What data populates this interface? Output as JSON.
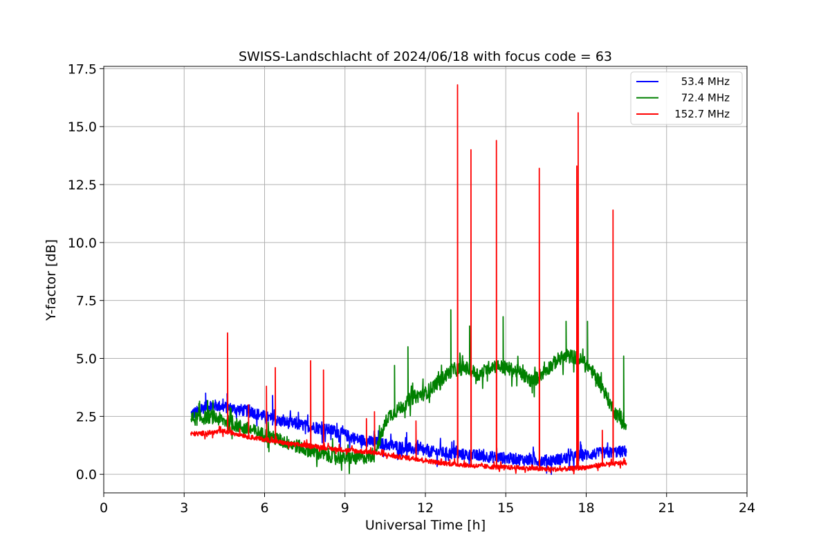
{
  "chart_data": {
    "type": "line",
    "title": "SWISS-Landschlacht of 2024/06/18 with focus code = 63",
    "xlabel": "Universal Time [h]",
    "ylabel": "Y-factor [dB]",
    "xlim": [
      0,
      24
    ],
    "ylim": [
      -0.8,
      17.6
    ],
    "xticks": [
      0,
      3,
      6,
      9,
      12,
      15,
      18,
      21,
      24
    ],
    "yticks": [
      0.0,
      2.5,
      5.0,
      7.5,
      10.0,
      12.5,
      15.0,
      17.5
    ],
    "xtick_labels": [
      "0",
      "3",
      "6",
      "9",
      "12",
      "15",
      "18",
      "21",
      "24"
    ],
    "ytick_labels": [
      "0.0",
      "2.5",
      "5.0",
      "7.5",
      "10.0",
      "12.5",
      "15.0",
      "17.5"
    ],
    "grid": true,
    "legend_position": "top-right",
    "series": [
      {
        "name": "53.4 MHz",
        "color": "#0000ff",
        "noise": 0.25,
        "x": [
          3.25,
          3.5,
          3.75,
          4.0,
          4.5,
          5.0,
          5.5,
          6.0,
          6.5,
          7.0,
          7.5,
          8.0,
          8.5,
          9.0,
          9.5,
          10.0,
          10.5,
          11.0,
          11.5,
          12.0,
          12.5,
          13.0,
          13.5,
          14.0,
          14.5,
          15.0,
          15.5,
          16.0,
          16.5,
          17.0,
          17.5,
          18.0,
          18.5,
          19.0,
          19.5
        ],
        "y": [
          2.6,
          2.7,
          2.9,
          3.0,
          2.9,
          2.8,
          2.7,
          2.5,
          2.3,
          2.2,
          2.1,
          2.0,
          1.9,
          1.7,
          1.5,
          1.4,
          1.3,
          1.2,
          1.1,
          1.0,
          0.95,
          0.9,
          0.85,
          0.8,
          0.75,
          0.7,
          0.65,
          0.6,
          0.6,
          0.65,
          0.75,
          0.85,
          0.9,
          0.95,
          1.0
        ],
        "spikes": [
          [
            3.8,
            3.5
          ],
          [
            4.6,
            3.2
          ],
          [
            6.3,
            3.4
          ],
          [
            8.7,
            2.2
          ],
          [
            11.3,
            1.8
          ]
        ]
      },
      {
        "name": "72.4 MHz",
        "color": "#008000",
        "noise": 0.3,
        "x": [
          3.25,
          3.5,
          4.0,
          4.5,
          5.0,
          5.5,
          6.0,
          6.5,
          7.0,
          7.5,
          8.0,
          8.5,
          9.0,
          9.5,
          10.0,
          10.3,
          10.6,
          11.0,
          11.5,
          12.0,
          12.5,
          13.0,
          13.5,
          14.0,
          14.5,
          15.0,
          15.5,
          16.0,
          16.5,
          17.0,
          17.5,
          18.0,
          18.5,
          19.0,
          19.5
        ],
        "y": [
          2.4,
          2.4,
          2.5,
          2.3,
          2.1,
          1.9,
          1.7,
          1.5,
          1.3,
          1.1,
          0.9,
          0.8,
          0.7,
          0.7,
          0.8,
          1.5,
          2.5,
          2.8,
          3.3,
          3.5,
          4.0,
          4.5,
          4.6,
          4.3,
          4.7,
          4.6,
          4.4,
          4.0,
          4.5,
          5.0,
          5.1,
          4.8,
          4.0,
          2.8,
          2.0
        ],
        "spikes": [
          [
            10.85,
            4.7
          ],
          [
            11.35,
            5.5
          ],
          [
            12.95,
            7.1
          ],
          [
            13.65,
            6.4
          ],
          [
            14.9,
            6.8
          ],
          [
            17.25,
            6.6
          ],
          [
            18.05,
            6.6
          ],
          [
            19.4,
            5.1
          ]
        ]
      },
      {
        "name": "152.7 MHz",
        "color": "#ff0000",
        "noise": 0.1,
        "x": [
          3.25,
          3.5,
          4.0,
          4.5,
          5.0,
          5.5,
          6.0,
          6.5,
          7.0,
          7.5,
          8.0,
          8.5,
          9.0,
          9.5,
          10.0,
          10.5,
          11.0,
          11.5,
          12.0,
          12.5,
          13.0,
          13.5,
          14.0,
          14.5,
          15.0,
          15.5,
          16.0,
          16.5,
          17.0,
          17.5,
          18.0,
          18.5,
          19.0,
          19.5
        ],
        "y": [
          1.75,
          1.75,
          1.8,
          1.85,
          1.75,
          1.6,
          1.5,
          1.4,
          1.3,
          1.25,
          1.2,
          1.1,
          1.05,
          1.0,
          0.95,
          0.85,
          0.75,
          0.7,
          0.6,
          0.5,
          0.45,
          0.4,
          0.35,
          0.32,
          0.3,
          0.28,
          0.25,
          0.22,
          0.22,
          0.25,
          0.3,
          0.4,
          0.45,
          0.5
        ],
        "spikes": [
          [
            4.62,
            6.1
          ],
          [
            5.4,
            3.0
          ],
          [
            6.07,
            3.8
          ],
          [
            6.4,
            4.6
          ],
          [
            7.72,
            4.9
          ],
          [
            8.2,
            4.5
          ],
          [
            9.8,
            2.4
          ],
          [
            10.1,
            2.7
          ],
          [
            11.65,
            2.3
          ],
          [
            13.2,
            16.8
          ],
          [
            13.7,
            14.0
          ],
          [
            14.65,
            14.4
          ],
          [
            16.25,
            13.2
          ],
          [
            17.65,
            13.3
          ],
          [
            17.7,
            15.6
          ],
          [
            18.6,
            1.9
          ],
          [
            19.0,
            11.4
          ]
        ]
      }
    ]
  }
}
